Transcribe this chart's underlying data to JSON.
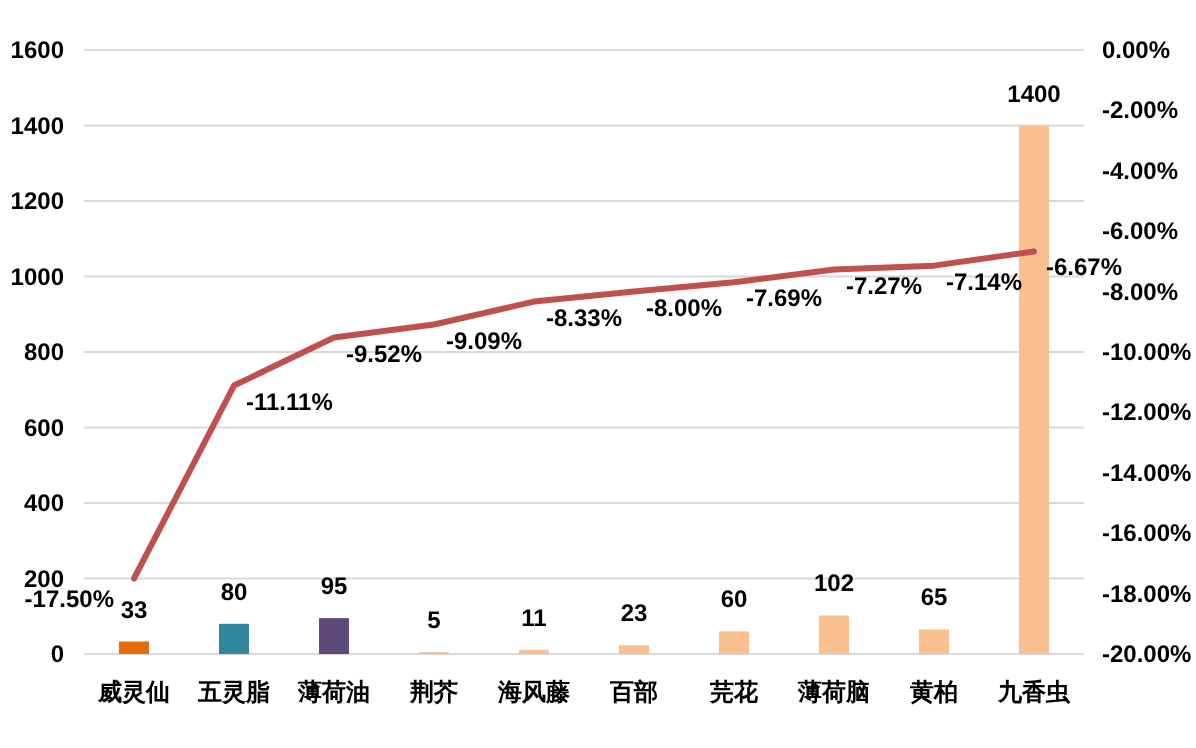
{
  "chart_data": {
    "type": "bar",
    "categories": [
      "威灵仙",
      "五灵脂",
      "薄荷油",
      "荆芥",
      "海风藤",
      "百部",
      "芫花",
      "薄荷脑",
      "黄柏",
      "九香虫"
    ],
    "series": [
      {
        "colors": [
          "#e36c0a",
          "#31859c",
          "#604a7b",
          "#fac090",
          "#fac090",
          "#fac090",
          "#fac090",
          "#fac090",
          "#fac090",
          "#fac090"
        ],
        "values": [
          33,
          80,
          95,
          5,
          11,
          23,
          60,
          102,
          65,
          1400
        ],
        "value_labels": [
          "33",
          "80",
          "95",
          "5",
          "11",
          "23",
          "60",
          "102",
          "65",
          "1400"
        ]
      },
      {
        "type": "line",
        "axis": "y2",
        "color": "#c0504d",
        "values": [
          -17.5,
          -11.11,
          -9.52,
          -9.09,
          -8.33,
          -8.0,
          -7.69,
          -7.27,
          -7.14,
          -6.67
        ],
        "value_labels": [
          "-17.50%",
          "-11.11%",
          "-9.52%",
          "-9.09%",
          "-8.33%",
          "-8.00%",
          "-7.69%",
          "-7.27%",
          "-7.14%",
          "-6.67%"
        ]
      }
    ],
    "ylim": [
      0,
      1600
    ],
    "yticks": [
      0,
      200,
      400,
      600,
      800,
      1000,
      1200,
      1400,
      1600
    ],
    "y2lim": [
      -20,
      0
    ],
    "y2ticks": [
      {
        "value": -20,
        "label": "-20.00%"
      },
      {
        "value": -18,
        "label": "-18.00%"
      },
      {
        "value": -16,
        "label": "-16.00%"
      },
      {
        "value": -14,
        "label": "-14.00%"
      },
      {
        "value": -12,
        "label": "-12.00%"
      },
      {
        "value": -10,
        "label": "-10.00%"
      },
      {
        "value": -8,
        "label": "-8.00%"
      },
      {
        "value": -6,
        "label": "-6.00%"
      },
      {
        "value": -4,
        "label": "-4.00%"
      },
      {
        "value": -2,
        "label": "-2.00%"
      },
      {
        "value": 0,
        "label": "0.00%"
      }
    ],
    "grid": "y",
    "legend": false
  }
}
